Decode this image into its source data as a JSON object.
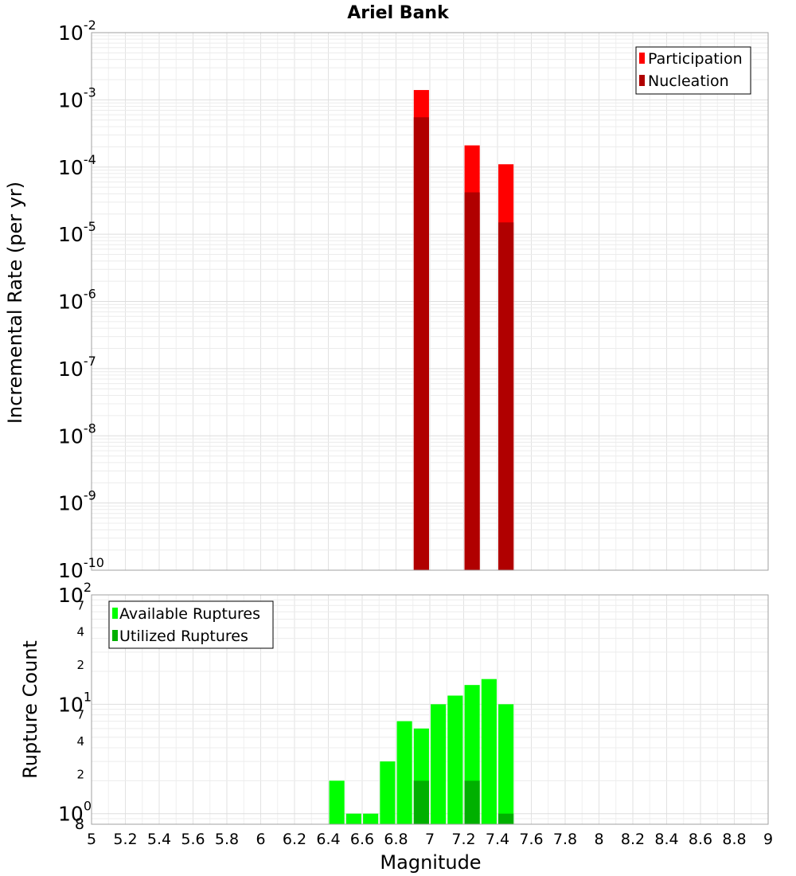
{
  "chart_data": [
    {
      "type": "bar",
      "title": "Ariel Bank",
      "xlabel": "Magnitude",
      "ylabel": "Incremental Rate (per yr)",
      "yscale": "log",
      "xlim": [
        5,
        9
      ],
      "ylim": [
        1e-10,
        0.01
      ],
      "bar_width": 0.09,
      "legend_position": "top-right",
      "series": [
        {
          "name": "Participation",
          "color": "#ff0000",
          "points": [
            {
              "x": 6.95,
              "y": 0.0014
            },
            {
              "x": 7.25,
              "y": 0.00021
            },
            {
              "x": 7.45,
              "y": 0.00011
            }
          ]
        },
        {
          "name": "Nucleation",
          "color": "#b00000",
          "points": [
            {
              "x": 6.95,
              "y": 0.00055
            },
            {
              "x": 7.25,
              "y": 4.2e-05
            },
            {
              "x": 7.45,
              "y": 1.5e-05
            }
          ]
        }
      ],
      "y_tick_labels": [
        {
          "base": "10",
          "exp": "-10",
          "value": 1e-10
        },
        {
          "base": "10",
          "exp": "-9",
          "value": 1e-09
        },
        {
          "base": "10",
          "exp": "-8",
          "value": 1e-08
        },
        {
          "base": "10",
          "exp": "-7",
          "value": 1e-07
        },
        {
          "base": "10",
          "exp": "-6",
          "value": 1e-06
        },
        {
          "base": "10",
          "exp": "-5",
          "value": 1e-05
        },
        {
          "base": "10",
          "exp": "-4",
          "value": 0.0001
        },
        {
          "base": "10",
          "exp": "-3",
          "value": 0.001
        },
        {
          "base": "10",
          "exp": "-2",
          "value": 0.01
        }
      ],
      "grid": true
    },
    {
      "type": "bar",
      "xlabel": "Magnitude",
      "ylabel": "Rupture Count",
      "yscale": "log",
      "xlim": [
        5,
        9
      ],
      "ylim": [
        0.8,
        100
      ],
      "bar_width": 0.09,
      "legend_position": "top-left",
      "x_ticks": [
        "5",
        "5.2",
        "5.4",
        "5.6",
        "5.8",
        "6",
        "6.2",
        "6.4",
        "6.6",
        "6.8",
        "7",
        "7.2",
        "7.4",
        "7.6",
        "7.8",
        "8",
        "8.2",
        "8.4",
        "8.6",
        "8.8",
        "9"
      ],
      "series": [
        {
          "name": "Available Ruptures",
          "color": "#00ff00",
          "points": [
            {
              "x": 6.45,
              "y": 2
            },
            {
              "x": 6.55,
              "y": 1
            },
            {
              "x": 6.65,
              "y": 1
            },
            {
              "x": 6.75,
              "y": 3
            },
            {
              "x": 6.85,
              "y": 7
            },
            {
              "x": 6.95,
              "y": 6
            },
            {
              "x": 7.05,
              "y": 10
            },
            {
              "x": 7.15,
              "y": 12
            },
            {
              "x": 7.25,
              "y": 15
            },
            {
              "x": 7.35,
              "y": 17
            },
            {
              "x": 7.45,
              "y": 10
            }
          ]
        },
        {
          "name": "Utilized Ruptures",
          "color": "#00b000",
          "points": [
            {
              "x": 6.95,
              "y": 2
            },
            {
              "x": 7.25,
              "y": 2
            },
            {
              "x": 7.45,
              "y": 1
            }
          ]
        }
      ],
      "major_ticks": [
        {
          "base": "10",
          "exp": "0",
          "value": 1
        },
        {
          "base": "10",
          "exp": "1",
          "value": 10
        },
        {
          "base": "10",
          "exp": "2",
          "value": 100
        }
      ],
      "minor_ticks": [
        {
          "label": "8",
          "value": 0.8
        },
        {
          "label": "2",
          "value": 2
        },
        {
          "label": "4",
          "value": 4
        },
        {
          "label": "7",
          "value": 7
        },
        {
          "label": "2",
          "value": 20
        },
        {
          "label": "4",
          "value": 40
        },
        {
          "label": "7",
          "value": 70
        }
      ],
      "grid": true
    }
  ]
}
